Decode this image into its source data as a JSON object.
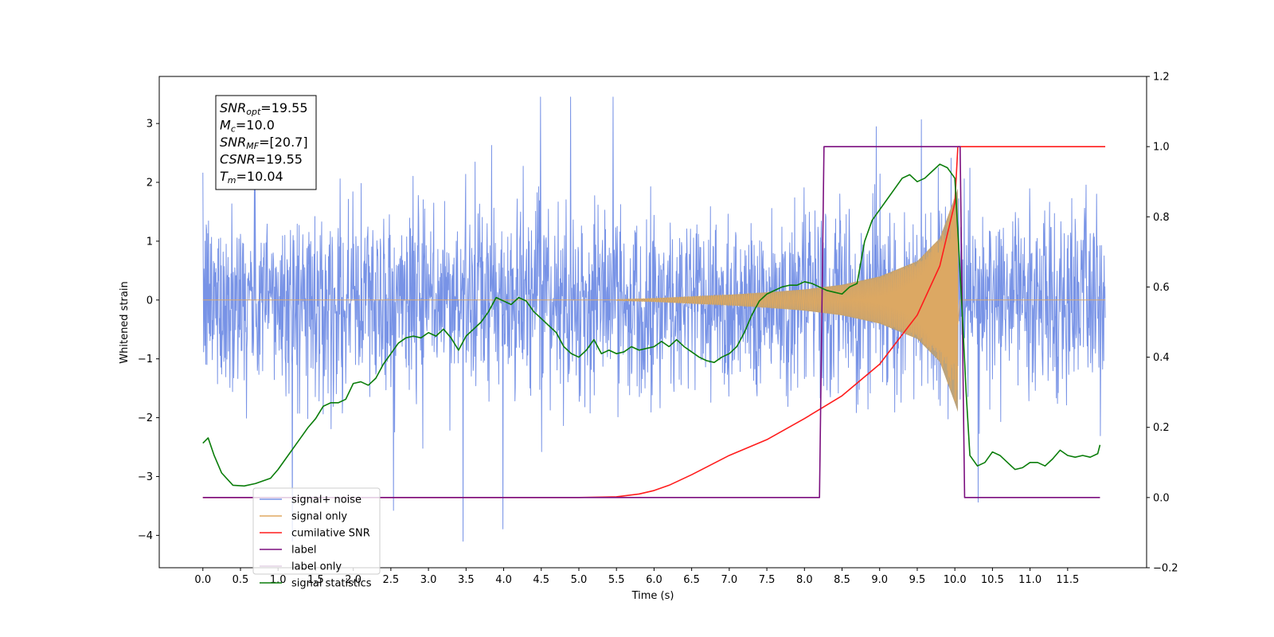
{
  "chart_data": {
    "type": "line",
    "title": "",
    "xlabel": "Time (s)",
    "ylabel": "Whitened strain",
    "y2label": "",
    "xlim": [
      -0.58,
      12.55
    ],
    "ylim": [
      -4.55,
      3.8
    ],
    "y2lim": [
      -0.2,
      1.2
    ],
    "grid": false,
    "legend_position": "lower-left",
    "x_ticks": [
      "0.0",
      "0.5",
      "1.0",
      "1.5",
      "2.0",
      "2.5",
      "3.0",
      "3.5",
      "4.0",
      "4.5",
      "5.0",
      "5.5",
      "6.0",
      "6.5",
      "7.0",
      "7.5",
      "8.0",
      "8.5",
      "9.0",
      "9.5",
      "10.0",
      "10.5",
      "11.0",
      "11.5"
    ],
    "y_ticks": [
      "3",
      "2",
      "1",
      "0",
      "−1",
      "−2",
      "−3",
      "−4"
    ],
    "y_tick_values": [
      3,
      2,
      1,
      0,
      -1,
      -2,
      -3,
      -4
    ],
    "y2_ticks": [
      "1.2",
      "1.0",
      "0.8",
      "0.6",
      "0.4",
      "0.2",
      "0.0",
      "−0.2"
    ],
    "y2_tick_values": [
      1.2,
      1.0,
      0.8,
      0.6,
      0.4,
      0.2,
      0.0,
      -0.2
    ],
    "annotation": [
      {
        "base": "SNR",
        "sub": "opt",
        "value": "=19.55"
      },
      {
        "base": "M",
        "sub": "c",
        "value": "=10.0"
      },
      {
        "base": "SNR",
        "sub": "MF",
        "value": "=[20.7]"
      },
      {
        "base": "CSNR",
        "sub": "",
        "value": "=19.55"
      },
      {
        "base": "T",
        "sub": "m",
        "value": "=10.04"
      }
    ],
    "series": [
      {
        "name": "signal+ noise",
        "axis": "left",
        "color": "#7893e6",
        "t_range": [
          0.0,
          12.0
        ],
        "typical_amplitude": [
          -1.6,
          1.4
        ],
        "peak_max": 3.45,
        "peak_min": -4.1
      },
      {
        "name": "signal only",
        "axis": "left",
        "color": "#e0a960",
        "merger_time": 10.04,
        "peak_amplitude": 1.9,
        "envelope": {
          "x": [
            5.5,
            6.0,
            6.5,
            7.0,
            7.5,
            8.0,
            8.5,
            9.0,
            9.5,
            9.8,
            10.0,
            10.04
          ],
          "y": [
            0.01,
            0.03,
            0.06,
            0.09,
            0.13,
            0.18,
            0.26,
            0.4,
            0.66,
            1.05,
            1.75,
            1.9
          ]
        }
      },
      {
        "name": "cumilative SNR",
        "axis": "right",
        "color": "#ff1c1c",
        "x": [
          0.0,
          5.0,
          5.5,
          5.8,
          6.0,
          6.2,
          6.5,
          7.0,
          7.5,
          8.0,
          8.5,
          9.0,
          9.5,
          9.8,
          10.0,
          10.04,
          10.05,
          12.0
        ],
        "y": [
          0.0,
          0.0,
          0.002,
          0.01,
          0.02,
          0.035,
          0.065,
          0.12,
          0.165,
          0.225,
          0.29,
          0.38,
          0.52,
          0.66,
          0.84,
          1.0,
          1.0,
          1.0
        ]
      },
      {
        "name": "label",
        "axis": "right",
        "color": "#7b0f7f",
        "x": [
          0.0,
          8.2,
          8.26,
          10.07,
          10.13,
          11.93
        ],
        "y": [
          0.0,
          0.0,
          1.0,
          1.0,
          0.0,
          0.0
        ]
      },
      {
        "name": "label only",
        "axis": "right",
        "color": "#c7a6c9",
        "hidden": true
      },
      {
        "name": "signal statistics",
        "axis": "right",
        "color": "#0a7d0a",
        "x": [
          0.0,
          0.07,
          0.15,
          0.25,
          0.4,
          0.55,
          0.7,
          0.9,
          1.0,
          1.1,
          1.2,
          1.3,
          1.4,
          1.5,
          1.6,
          1.7,
          1.8,
          1.9,
          2.0,
          2.1,
          2.2,
          2.3,
          2.4,
          2.5,
          2.6,
          2.7,
          2.8,
          2.9,
          3.0,
          3.1,
          3.2,
          3.3,
          3.4,
          3.5,
          3.6,
          3.7,
          3.8,
          3.9,
          4.0,
          4.1,
          4.2,
          4.3,
          4.4,
          4.5,
          4.6,
          4.7,
          4.8,
          4.9,
          5.0,
          5.1,
          5.2,
          5.3,
          5.4,
          5.5,
          5.6,
          5.7,
          5.8,
          5.9,
          6.0,
          6.1,
          6.2,
          6.3,
          6.4,
          6.5,
          6.6,
          6.7,
          6.8,
          6.9,
          7.0,
          7.1,
          7.2,
          7.3,
          7.4,
          7.5,
          7.6,
          7.7,
          7.8,
          7.9,
          8.0,
          8.1,
          8.2,
          8.3,
          8.4,
          8.5,
          8.6,
          8.7,
          8.8,
          8.9,
          9.0,
          9.1,
          9.2,
          9.3,
          9.4,
          9.5,
          9.6,
          9.7,
          9.8,
          9.9,
          10.0,
          10.05,
          10.1,
          10.15,
          10.2,
          10.3,
          10.4,
          10.5,
          10.6,
          10.7,
          10.8,
          10.9,
          11.0,
          11.1,
          11.2,
          11.3,
          11.4,
          11.5,
          11.6,
          11.7,
          11.8,
          11.9,
          11.93
        ],
        "y": [
          0.155,
          0.17,
          0.12,
          0.07,
          0.035,
          0.033,
          0.04,
          0.055,
          0.08,
          0.11,
          0.14,
          0.17,
          0.2,
          0.225,
          0.26,
          0.27,
          0.27,
          0.28,
          0.325,
          0.33,
          0.32,
          0.34,
          0.38,
          0.41,
          0.44,
          0.455,
          0.46,
          0.455,
          0.47,
          0.46,
          0.48,
          0.455,
          0.42,
          0.46,
          0.48,
          0.5,
          0.53,
          0.57,
          0.56,
          0.55,
          0.57,
          0.56,
          0.53,
          0.51,
          0.49,
          0.47,
          0.43,
          0.41,
          0.4,
          0.42,
          0.45,
          0.41,
          0.42,
          0.41,
          0.415,
          0.43,
          0.42,
          0.425,
          0.43,
          0.445,
          0.43,
          0.45,
          0.43,
          0.415,
          0.4,
          0.39,
          0.385,
          0.4,
          0.41,
          0.43,
          0.47,
          0.52,
          0.56,
          0.58,
          0.59,
          0.6,
          0.605,
          0.605,
          0.615,
          0.61,
          0.6,
          0.59,
          0.585,
          0.58,
          0.6,
          0.61,
          0.73,
          0.79,
          0.82,
          0.85,
          0.88,
          0.91,
          0.92,
          0.9,
          0.91,
          0.93,
          0.95,
          0.94,
          0.91,
          0.72,
          0.52,
          0.3,
          0.12,
          0.09,
          0.1,
          0.13,
          0.12,
          0.1,
          0.08,
          0.085,
          0.1,
          0.1,
          0.09,
          0.11,
          0.135,
          0.12,
          0.115,
          0.12,
          0.115,
          0.125,
          0.15
        ]
      }
    ]
  }
}
